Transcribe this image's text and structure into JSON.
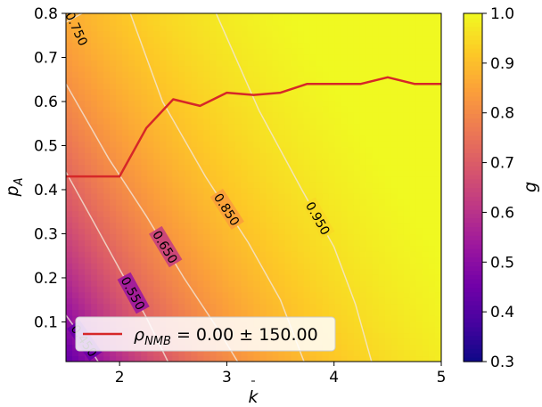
{
  "chart_data": {
    "type": "heatmap",
    "xlabel": "k̄",
    "ylabel": "p_A",
    "colorbar_label": "g",
    "xlim": [
      1.5,
      5
    ],
    "ylim": [
      0.01,
      0.8
    ],
    "x_ticks": [
      2,
      3,
      4,
      5
    ],
    "y_ticks": [
      0.1,
      0.2,
      0.3,
      0.4,
      0.5,
      0.6,
      0.7,
      0.8
    ],
    "x_tick_labels": [
      "2",
      "3",
      "4",
      "5"
    ],
    "y_tick_labels": [
      "0.1",
      "0.2",
      "0.3",
      "0.4",
      "0.5",
      "0.6",
      "0.7",
      "0.8"
    ],
    "colorbar_range": [
      0.3,
      1.0
    ],
    "colorbar_ticks": [
      0.3,
      0.4,
      0.5,
      0.6,
      0.7,
      0.8,
      0.9,
      1.0
    ],
    "colorbar_tick_labels": [
      "0.3",
      "0.4",
      "0.5",
      "0.6",
      "0.7",
      "0.8",
      "0.9",
      "1.0"
    ],
    "colormap": [
      "#0d0887",
      "#46039f",
      "#7201a8",
      "#9c179e",
      "#bd3786",
      "#d8576b",
      "#ed7953",
      "#fb9f3a",
      "#fdca26",
      "#f0f921"
    ],
    "contour_levels": [
      {
        "level": 0.45,
        "label": "0.450",
        "points": [
          [
            1.5,
            0.115
          ],
          [
            1.62,
            0.075
          ],
          [
            1.72,
            0.04
          ],
          [
            1.8,
            0.01
          ]
        ]
      },
      {
        "level": 0.55,
        "label": "0.550",
        "points": [
          [
            1.5,
            0.44
          ],
          [
            1.75,
            0.33
          ],
          [
            2.0,
            0.22
          ],
          [
            2.25,
            0.11
          ],
          [
            2.45,
            0.01
          ]
        ]
      },
      {
        "level": 0.65,
        "label": "0.650",
        "points": [
          [
            1.5,
            0.64
          ],
          [
            1.9,
            0.47
          ],
          [
            2.25,
            0.34
          ],
          [
            2.6,
            0.2
          ],
          [
            2.9,
            0.09
          ],
          [
            3.1,
            0.01
          ]
        ]
      },
      {
        "level": 0.75,
        "label": "",
        "points": [
          [
            1.5,
            0.78
          ],
          [
            1.65,
            0.8
          ]
        ]
      },
      {
        "level": 0.85,
        "label": "0.850",
        "points": [
          [
            2.1,
            0.8
          ],
          [
            2.4,
            0.6
          ],
          [
            2.8,
            0.43
          ],
          [
            3.2,
            0.28
          ],
          [
            3.5,
            0.15
          ],
          [
            3.72,
            0.01
          ]
        ]
      },
      {
        "level": 0.95,
        "label": "0.950",
        "points": [
          [
            2.9,
            0.8
          ],
          [
            3.3,
            0.58
          ],
          [
            3.7,
            0.4
          ],
          [
            4.0,
            0.27
          ],
          [
            4.2,
            0.14
          ],
          [
            4.35,
            0.01
          ]
        ]
      }
    ],
    "corner_contour_label": "0.750",
    "series": [
      {
        "name": "ρ_NMB = 0.00 ± 150.00",
        "color": "#d62728",
        "x": [
          1.5,
          1.75,
          2.0,
          2.25,
          2.5,
          2.75,
          3.0,
          3.25,
          3.5,
          3.75,
          4.0,
          4.25,
          4.5,
          4.75,
          5.0
        ],
        "y": [
          0.43,
          0.43,
          0.43,
          0.54,
          0.605,
          0.59,
          0.62,
          0.615,
          0.62,
          0.64,
          0.64,
          0.64,
          0.655,
          0.64,
          0.64
        ]
      }
    ],
    "legend_location": "lower-left"
  }
}
